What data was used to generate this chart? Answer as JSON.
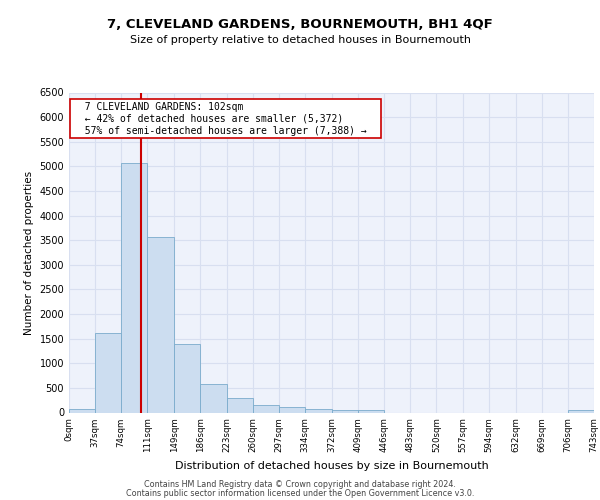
{
  "title": "7, CLEVELAND GARDENS, BOURNEMOUTH, BH1 4QF",
  "subtitle": "Size of property relative to detached houses in Bournemouth",
  "xlabel": "Distribution of detached houses by size in Bournemouth",
  "ylabel": "Number of detached properties",
  "bin_edges": [
    0,
    37,
    74,
    111,
    149,
    186,
    223,
    260,
    297,
    334,
    372,
    409,
    446,
    483,
    520,
    557,
    594,
    632,
    669,
    706,
    743
  ],
  "bin_counts": [
    75,
    1625,
    5075,
    3575,
    1400,
    575,
    290,
    145,
    110,
    75,
    55,
    55,
    0,
    0,
    0,
    0,
    0,
    0,
    0,
    55
  ],
  "bar_color": "#ccddf0",
  "bar_edge_color": "#7aabcc",
  "property_size": 102,
  "vline_color": "#cc0000",
  "annotation_text": "  7 CLEVELAND GARDENS: 102sqm  \n  ← 42% of detached houses are smaller (5,372)  \n  57% of semi-detached houses are larger (7,388) →  ",
  "annotation_box_color": "#ffffff",
  "annotation_box_edge": "#cc0000",
  "ylim": [
    0,
    6500
  ],
  "yticks": [
    0,
    500,
    1000,
    1500,
    2000,
    2500,
    3000,
    3500,
    4000,
    4500,
    5000,
    5500,
    6000,
    6500
  ],
  "footer_line1": "Contains HM Land Registry data © Crown copyright and database right 2024.",
  "footer_line2": "Contains public sector information licensed under the Open Government Licence v3.0.",
  "bg_color": "#eef2fb",
  "grid_color": "#d8dff0",
  "tick_labels": [
    "0sqm",
    "37sqm",
    "74sqm",
    "111sqm",
    "149sqm",
    "186sqm",
    "223sqm",
    "260sqm",
    "297sqm",
    "334sqm",
    "372sqm",
    "409sqm",
    "446sqm",
    "483sqm",
    "520sqm",
    "557sqm",
    "594sqm",
    "632sqm",
    "669sqm",
    "706sqm",
    "743sqm"
  ]
}
